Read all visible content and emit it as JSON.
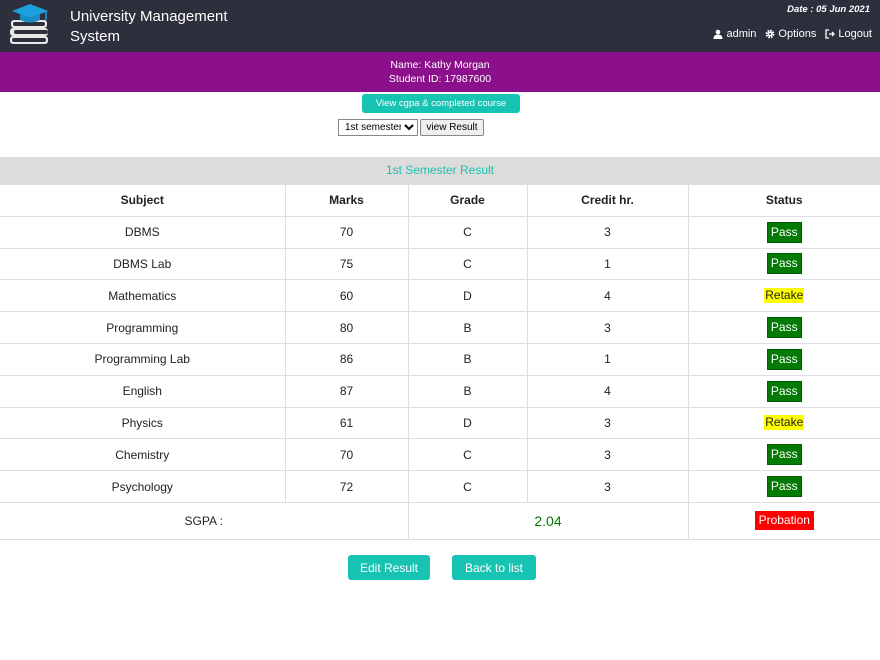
{
  "header": {
    "title_line1": "University Management",
    "title_line2": "System",
    "date": "Date : 05 Jun 2021",
    "nav": [
      {
        "icon": "user-icon",
        "label": "admin"
      },
      {
        "icon": "gear-icon",
        "label": "Options"
      },
      {
        "icon": "logout-icon",
        "label": "Logout"
      }
    ]
  },
  "student": {
    "name": "Name: Kathy Morgan",
    "id": "Student ID: 17987600"
  },
  "controls": {
    "cgpa_button": "View cgpa & completed course",
    "semester_selected": "1st semester",
    "view_button": "view Result"
  },
  "result": {
    "title": "1st Semester Result",
    "columns": [
      "Subject",
      "Marks",
      "Grade",
      "Credit hr.",
      "Status"
    ],
    "rows": [
      {
        "subject": "DBMS",
        "marks": "70",
        "grade": "C",
        "credit": "3",
        "status": "Pass"
      },
      {
        "subject": "DBMS Lab",
        "marks": "75",
        "grade": "C",
        "credit": "1",
        "status": "Pass"
      },
      {
        "subject": "Mathematics",
        "marks": "60",
        "grade": "D",
        "credit": "4",
        "status": "Retake"
      },
      {
        "subject": "Programming",
        "marks": "80",
        "grade": "B",
        "credit": "3",
        "status": "Pass"
      },
      {
        "subject": "Programming Lab",
        "marks": "86",
        "grade": "B",
        "credit": "1",
        "status": "Pass"
      },
      {
        "subject": "English",
        "marks": "87",
        "grade": "B",
        "credit": "4",
        "status": "Pass"
      },
      {
        "subject": "Physics",
        "marks": "61",
        "grade": "D",
        "credit": "3",
        "status": "Retake"
      },
      {
        "subject": "Chemistry",
        "marks": "70",
        "grade": "C",
        "credit": "3",
        "status": "Pass"
      },
      {
        "subject": "Psychology",
        "marks": "72",
        "grade": "C",
        "credit": "3",
        "status": "Pass"
      }
    ],
    "sgpa_label": "SGPA :",
    "sgpa_value": "2.04",
    "sgpa_status": "Probation"
  },
  "actions": {
    "edit_label": "Edit Result",
    "back_label": "Back to list"
  },
  "colors": {
    "header_bg": "#2e2f3d",
    "banner_bg": "#8c0f8c",
    "accent": "#17c3b2",
    "pass": "#037a03",
    "retake": "#ffff00",
    "probation": "#ff0000"
  }
}
